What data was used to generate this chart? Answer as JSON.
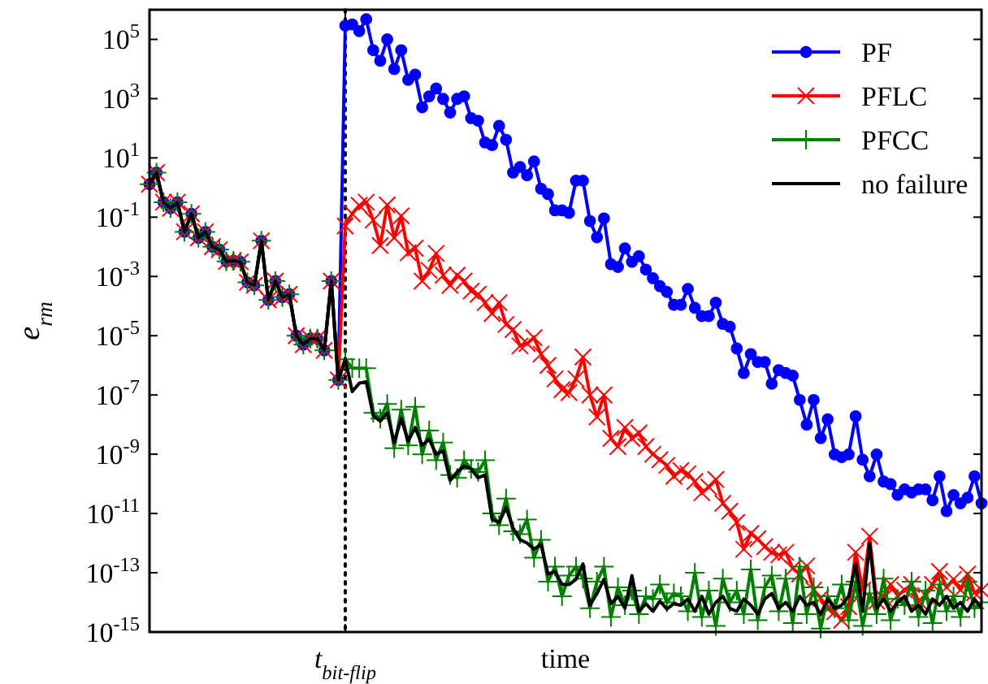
{
  "chart_data": {
    "type": "line",
    "xlabel": "time",
    "ylabel": "e$_{rm}$",
    "log": "y",
    "ylim": [
      1e-15,
      1000000.0
    ],
    "yticks": [
      {
        "value": 1e-15,
        "label": "10$^{-15}$"
      },
      {
        "value": 1e-13,
        "label": "10$^{-13}$"
      },
      {
        "value": 1e-11,
        "label": "10$^{-11}$"
      },
      {
        "value": 1e-09,
        "label": "10$^{-9}$"
      },
      {
        "value": 1e-07,
        "label": "10$^{-7}$"
      },
      {
        "value": 1e-05,
        "label": "10$^{-5}$"
      },
      {
        "value": 0.001,
        "label": "10$^{-3}$"
      },
      {
        "value": 0.1,
        "label": "10$^{-1}$"
      },
      {
        "value": 10,
        "label": "10$^{1}$"
      },
      {
        "value": 1000,
        "label": "10$^{3}$"
      },
      {
        "value": 100000,
        "label": "10$^{5}$"
      }
    ],
    "categories": [
      null,
      null,
      null,
      null,
      null,
      null,
      null,
      null,
      null,
      null,
      null,
      null,
      null,
      null,
      null,
      null,
      null,
      null,
      null,
      null,
      null,
      null,
      null,
      null,
      null,
      null,
      null,
      null,
      "t$_{bit-flip}$",
      null,
      null,
      null,
      null,
      null,
      null,
      null,
      null,
      null,
      null,
      null,
      null,
      null,
      null,
      null,
      null,
      null,
      null,
      null,
      null,
      null,
      null,
      null,
      null,
      null,
      null,
      null,
      null,
      null,
      null,
      null,
      null,
      null,
      null,
      null,
      null,
      null,
      null,
      null,
      null,
      null,
      null,
      null,
      null,
      null,
      null,
      null,
      null,
      null,
      null,
      null,
      null,
      null,
      null,
      null,
      null,
      null,
      null,
      null,
      null,
      null,
      null,
      null,
      null,
      null,
      null,
      null,
      null,
      null,
      null,
      null,
      null,
      null,
      null,
      null,
      null,
      null,
      null,
      null,
      null,
      null,
      null,
      null,
      null,
      null,
      null,
      null,
      null,
      null,
      null,
      null
    ],
    "ref_lines": [
      {
        "axis": "x",
        "value": "t$_{bit-flip}$",
        "color": "#000000",
        "line_style": "dotted"
      }
    ],
    "legend": "top right",
    "line_style": "solid",
    "series": [
      {
        "name": "PF",
        "color": "#0000ff",
        "marker": "circle",
        "values": [
          1.3,
          3.2,
          0.32,
          0.2,
          0.32,
          0.032,
          0.13,
          0.02,
          0.032,
          0.01,
          0.008,
          0.0032,
          0.0034,
          0.0031,
          0.00063,
          0.0005,
          0.016,
          0.00016,
          0.0007,
          0.0002,
          0.00025,
          1e-05,
          5e-06,
          8e-06,
          8e-06,
          3.2e-06,
          0.0007,
          3.2e-07,
          290000.0,
          320000.0,
          190000.0,
          480000.0,
          43000.0,
          19000.0,
          100000.0,
          10000.0,
          43000.0,
          4300.0,
          6500.0,
          510,
          1200,
          2200,
          980,
          340,
          980,
          1200,
          220,
          180,
          33,
          27,
          120,
          41,
          3.2,
          4.9,
          2.6,
          7.6,
          0.91,
          0.6,
          0.17,
          0.17,
          0.14,
          1.7,
          1.7,
          0.074,
          0.021,
          0.091,
          0.0026,
          0.0021,
          0.0089,
          0.0031,
          0.0048,
          0.0017,
          0.00087,
          0.00047,
          0.0003,
          0.00011,
          0.00011,
          0.00038,
          8.7e-05,
          4.6e-05,
          4.6e-05,
          0.00013,
          2.5e-05,
          2e-05,
          3.7e-06,
          5.5e-07,
          2.4e-06,
          1.3e-06,
          1.3e-06,
          2.4e-07,
          6.9e-07,
          5.5e-07,
          4.5e-07,
          6.8e-08,
          1e-08,
          6.8e-08,
          3.5e-09,
          1.5e-08,
          9.8e-10,
          7.9e-10,
          9.8e-10,
          1.9e-08,
          6.5e-10,
          1.8e-10,
          9.8e-10,
          1.2e-10,
          9.8e-11,
          4.2e-11,
          6.5e-11,
          5.1e-11,
          6.5e-11,
          6.5e-11,
          2.8e-11,
          1.8e-10,
          1.2e-11,
          4.2e-11,
          2.2e-11,
          3.4e-11,
          1.8e-10,
          2.2e-11
        ]
      },
      {
        "name": "PFLC",
        "color": "#ff0000",
        "marker": "cross",
        "values": [
          1.3,
          3.2,
          0.32,
          0.2,
          0.32,
          0.032,
          0.13,
          0.02,
          0.032,
          0.01,
          0.008,
          0.0032,
          0.0034,
          0.0031,
          0.00063,
          0.0005,
          0.016,
          0.00016,
          0.0007,
          0.0002,
          0.00025,
          1e-05,
          5e-06,
          8e-06,
          8e-06,
          3.2e-06,
          0.0007,
          3.2e-07,
          0.05,
          0.13,
          0.25,
          0.32,
          0.08,
          0.011,
          0.26,
          0.02,
          0.11,
          0.0063,
          0.009,
          0.0007,
          0.0016,
          0.006,
          0.0011,
          0.0005,
          0.0011,
          0.0007,
          0.00032,
          0.00025,
          0.00013,
          5.6e-05,
          0.00013,
          2.4e-05,
          1.6e-05,
          4.5e-06,
          5.5e-06,
          8.5e-06,
          2.4e-06,
          1e-06,
          3.5e-07,
          1.5e-07,
          1.2e-07,
          3.5e-07,
          1.9e-06,
          1e-07,
          1.8e-08,
          1e-07,
          3.4e-09,
          1.8e-09,
          8e-09,
          3.4e-09,
          5.2e-09,
          1.8e-09,
          1e-09,
          6.5e-10,
          4.2e-10,
          1.8e-10,
          2.8e-10,
          2.2e-10,
          1.2e-10,
          5e-11,
          7.8e-11,
          1.4e-10,
          2.2e-11,
          1.2e-11,
          5e-12,
          6.2e-13,
          2.1e-12,
          1.4e-12,
          7.6e-13,
          4.9e-13,
          4e-13,
          4.9e-13,
          1.4e-13,
          9e-14,
          1.7e-13,
          2.6e-14,
          1.4e-14,
          5.9e-15,
          4.8e-15,
          2.5e-15,
          7.2e-15,
          4.9e-13,
          2.6e-14,
          1.7e-12,
          1.1e-14,
          1.4e-14,
          4e-14,
          1.7e-14,
          2.6e-14,
          4e-14,
          1.1e-14,
          1.7e-14,
          4e-14,
          1.1e-13,
          3.2e-14,
          6e-14,
          2.6e-14,
          9e-14,
          2.1e-14,
          2.6e-14
        ]
      },
      {
        "name": "PFCC",
        "color": "#008000",
        "marker": "plus",
        "values": [
          1.3,
          3.2,
          0.32,
          0.2,
          0.32,
          0.032,
          0.13,
          0.02,
          0.032,
          0.01,
          0.008,
          0.0032,
          0.0034,
          0.0031,
          0.00063,
          0.0005,
          0.016,
          0.00016,
          0.0007,
          0.0002,
          0.00025,
          1e-05,
          5e-06,
          8e-06,
          8e-06,
          3.2e-06,
          0.0007,
          3.2e-07,
          1.6e-06,
          8e-07,
          8e-07,
          8e-07,
          2.5e-08,
          1.6e-08,
          5e-08,
          1.6e-09,
          3.2e-08,
          2e-09,
          4e-08,
          1e-09,
          6.3e-09,
          6.3e-10,
          2.5e-09,
          2e-10,
          1.6e-10,
          6.3e-10,
          3.2e-10,
          2.5e-10,
          6.3e-10,
          1e-11,
          4e-12,
          3.2e-11,
          2.5e-12,
          2e-12,
          6.3e-12,
          3.2e-13,
          1.3e-12,
          5e-14,
          1.6e-13,
          1.6e-14,
          8e-14,
          1.6e-13,
          6.3e-14,
          6.3e-15,
          5e-14,
          1.6e-13,
          3.2e-15,
          3.2e-14,
          8e-15,
          2.5e-14,
          4e-15,
          1.6e-14,
          1.3e-14,
          4e-14,
          1e-14,
          2e-14,
          1.6e-14,
          5e-15,
          1e-13,
          3.2e-15,
          2.5e-14,
          1.6e-15,
          6.3e-14,
          1e-14,
          2.5e-14,
          4e-15,
          1.3e-13,
          2.5e-15,
          3.2e-14,
          8e-14,
          5e-15,
          6.3e-14,
          2e-15,
          1.6e-13,
          4e-15,
          3.2e-14,
          1.3e-15,
          1.6e-14,
          6.3e-15,
          4e-14,
          2.5e-15,
          5e-14,
          1.6e-15,
          2e-14,
          4e-15,
          6.3e-14,
          2.5e-15,
          1.3e-14,
          8e-15,
          5e-14,
          3.2e-15,
          2.5e-14,
          2e-15,
          4e-14,
          5e-15,
          1.6e-14,
          3.2e-15,
          5e-14,
          6.3e-15,
          1e-14
        ]
      },
      {
        "name": "no failure",
        "color": "#000000",
        "marker": "none",
        "values": [
          1.3,
          3.2,
          0.32,
          0.2,
          0.32,
          0.032,
          0.13,
          0.02,
          0.032,
          0.01,
          0.008,
          0.0032,
          0.0034,
          0.0031,
          0.00063,
          0.0005,
          0.016,
          0.00016,
          0.0007,
          0.0002,
          0.00025,
          1e-05,
          5e-06,
          8e-06,
          8e-06,
          3.2e-06,
          0.0007,
          3.2e-07,
          1.6e-06,
          1.3e-07,
          2.5e-07,
          2.8e-07,
          2e-08,
          1.3e-08,
          2.5e-08,
          2.5e-09,
          1.6e-08,
          2.8e-09,
          8e-09,
          2e-09,
          3.2e-09,
          1e-09,
          1.3e-09,
          1.3e-10,
          2.5e-10,
          4e-10,
          3.2e-10,
          1.6e-10,
          2e-10,
          6.3e-12,
          5e-12,
          1.6e-11,
          3.2e-12,
          1.3e-12,
          1e-12,
          6.3e-13,
          9e-13,
          9e-14,
          1.1e-13,
          4e-14,
          4e-14,
          6e-14,
          2e-13,
          8e-15,
          2e-14,
          6e-14,
          9e-15,
          1.6e-14,
          6.3e-15,
          8e-14,
          5e-15,
          9e-15,
          5e-15,
          1.1e-14,
          6e-15,
          9e-15,
          8e-15,
          1.3e-14,
          5e-15,
          1.6e-14,
          4e-15,
          1e-14,
          1.6e-14,
          6.3e-15,
          5e-15,
          1.3e-14,
          8e-15,
          4e-15,
          1.3e-14,
          2e-14,
          6.3e-15,
          1e-14,
          5e-15,
          1.6e-14,
          8e-15,
          1e-14,
          4e-15,
          1.3e-14,
          6.3e-15,
          8e-15,
          1.6e-14,
          2e-13,
          5e-15,
          1e-12,
          6.3e-15,
          1.3e-14,
          5e-15,
          1e-14,
          1.6e-14,
          5e-15,
          8e-15,
          4e-15,
          1.3e-14,
          8e-15,
          1.6e-14,
          6.3e-15,
          1e-14,
          5e-15,
          1.3e-14,
          6.3e-15
        ]
      }
    ]
  }
}
